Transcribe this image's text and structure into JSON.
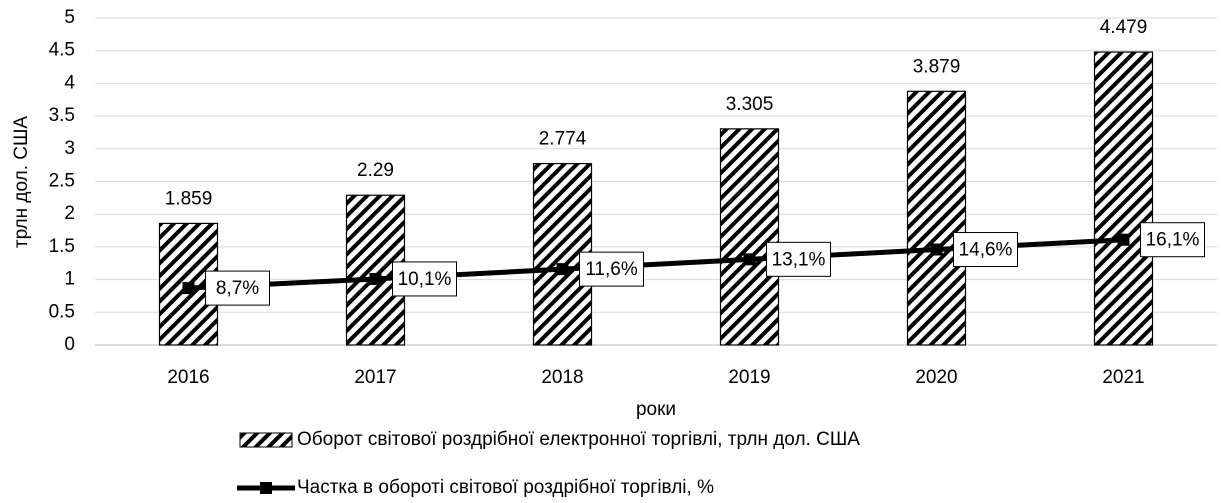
{
  "chart_data": {
    "type": "bar",
    "y_label": "трлн дол. США",
    "x_label": "роки",
    "categories": [
      "2016",
      "2017",
      "2018",
      "2019",
      "2020",
      "2021"
    ],
    "ylim": [
      0,
      5
    ],
    "yticks": [
      0,
      0.5,
      1,
      1.5,
      2,
      2.5,
      3,
      3.5,
      4,
      4.5,
      5
    ],
    "y2lim": [
      0,
      50
    ],
    "grid": true,
    "series": [
      {
        "name": "Оборот світової роздрібної електронної торгівлі, трлн дол. США",
        "type": "bar",
        "color": "#000000",
        "values": [
          1.859,
          2.29,
          2.774,
          3.305,
          3.879,
          4.479
        ]
      },
      {
        "name": "Частка в обороті світової роздрібної торгівлі, %",
        "type": "line",
        "axis": "y2",
        "color": "#000000",
        "values": [
          8.7,
          10.1,
          11.6,
          13.1,
          14.6,
          16.1
        ],
        "value_labels": [
          "8,7%",
          "10,1%",
          "11,6%",
          "13,1%",
          "14,6%",
          "16,1%"
        ]
      }
    ]
  }
}
